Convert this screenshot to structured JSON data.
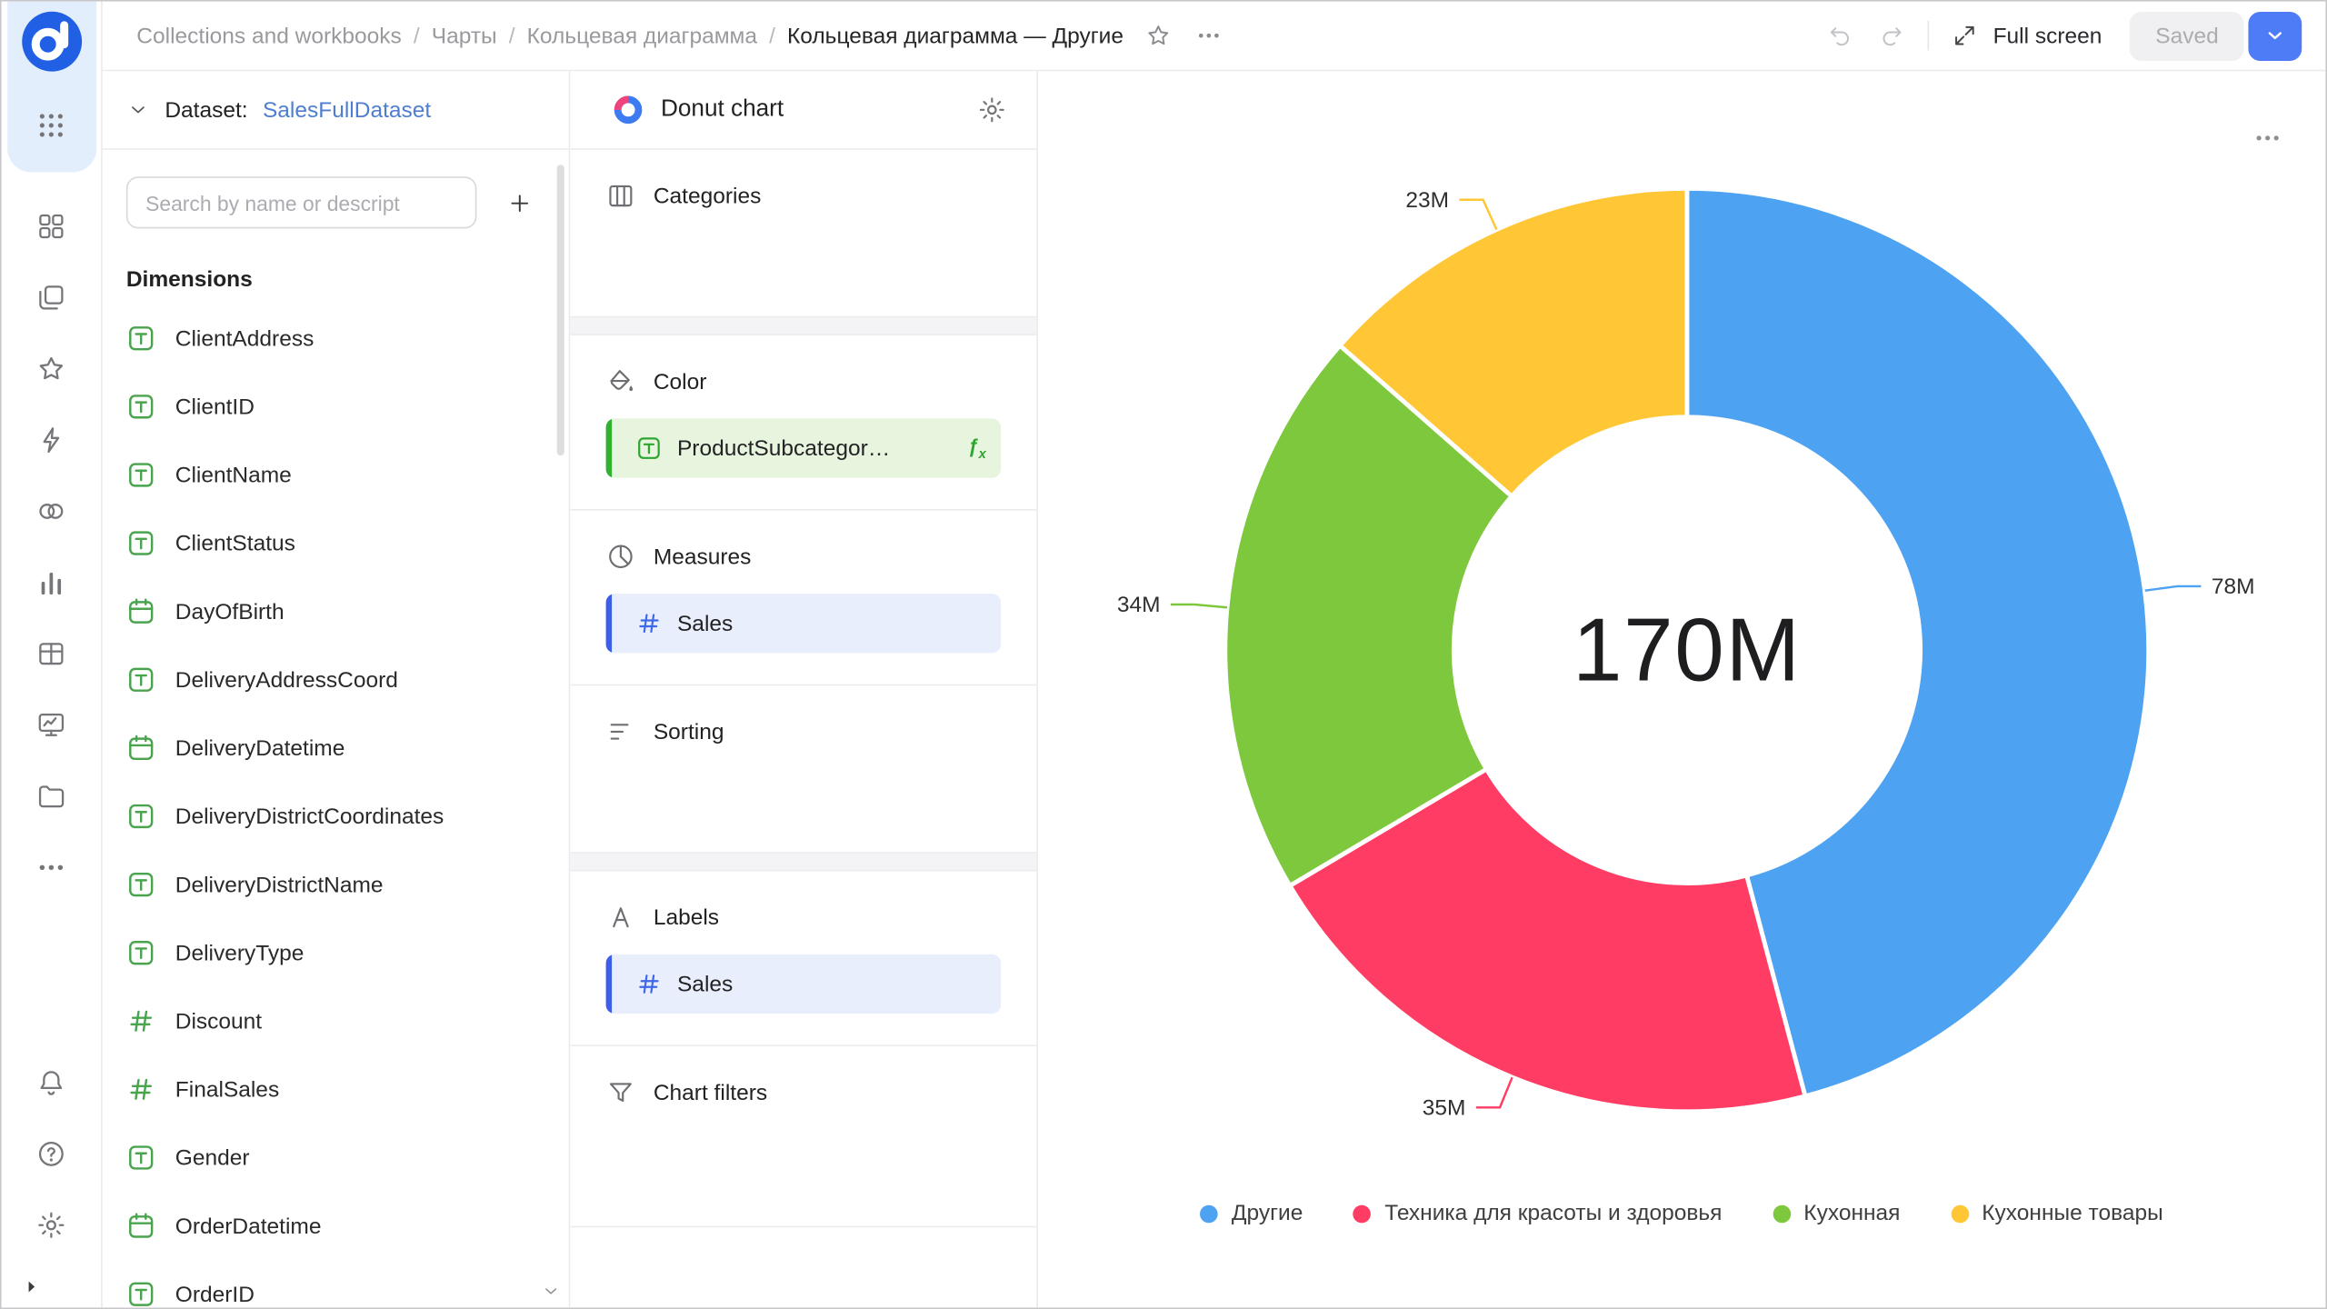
{
  "topbar": {
    "breadcrumbs": [
      "Collections and workbooks",
      "Чарты",
      "Кольцевая диаграмма"
    ],
    "current_page": "Кольцевая диаграмма — Другие",
    "full_screen": "Full screen",
    "saved": "Saved"
  },
  "rail": {
    "nav_items": [
      "dashboards",
      "collections",
      "favorites",
      "functions",
      "connections",
      "charts",
      "datasets",
      "monitoring",
      "storage",
      "more"
    ],
    "bottom_items": [
      "notifications",
      "help",
      "settings"
    ]
  },
  "dataset_panel": {
    "dataset_label": "Dataset:",
    "dataset_name": "SalesFullDataset",
    "search_placeholder": "Search by name or descript",
    "section_title": "Dimensions",
    "fields": [
      {
        "name": "ClientAddress",
        "type": "text"
      },
      {
        "name": "ClientID",
        "type": "text"
      },
      {
        "name": "ClientName",
        "type": "text"
      },
      {
        "name": "ClientStatus",
        "type": "text"
      },
      {
        "name": "DayOfBirth",
        "type": "date"
      },
      {
        "name": "DeliveryAddressCoord",
        "type": "text"
      },
      {
        "name": "DeliveryDatetime",
        "type": "date"
      },
      {
        "name": "DeliveryDistrictCoordinates",
        "type": "text"
      },
      {
        "name": "DeliveryDistrictName",
        "type": "text"
      },
      {
        "name": "DeliveryType",
        "type": "text"
      },
      {
        "name": "Discount",
        "type": "number"
      },
      {
        "name": "FinalSales",
        "type": "number"
      },
      {
        "name": "Gender",
        "type": "text"
      },
      {
        "name": "OrderDatetime",
        "type": "date"
      },
      {
        "name": "OrderID",
        "type": "text"
      }
    ]
  },
  "config_panel": {
    "chart_type": "Donut chart",
    "groups": [
      [
        {
          "label": "Categories",
          "icon": "categories",
          "chips": []
        }
      ],
      [
        {
          "label": "Color",
          "icon": "color",
          "chips": [
            {
              "text": "ProductSubcategor…",
              "field_type": "text",
              "color": "green",
              "fx": true
            }
          ]
        },
        {
          "label": "Measures",
          "icon": "measures",
          "chips": [
            {
              "text": "Sales",
              "field_type": "number",
              "color": "blue"
            }
          ]
        },
        {
          "label": "Sorting",
          "icon": "sorting",
          "chips": []
        }
      ],
      [
        {
          "label": "Labels",
          "icon": "labels",
          "chips": [
            {
              "text": "Sales",
              "field_type": "number",
              "color": "blue"
            }
          ]
        },
        {
          "label": "Chart filters",
          "icon": "filters",
          "chips": []
        }
      ]
    ]
  },
  "chart_data": {
    "type": "pie",
    "subtype": "donut",
    "title": "",
    "center_total": "170M",
    "units": "M",
    "legend_position": "bottom",
    "series": [
      {
        "name": "Другие",
        "value": 78,
        "label": "78M",
        "color": "#4DA2F1"
      },
      {
        "name": "Техника для красоты и здоровья",
        "value": 35,
        "label": "35M",
        "color": "#FF3D64"
      },
      {
        "name": "Кухонная",
        "value": 34,
        "label": "34M",
        "color": "#7DC83C"
      },
      {
        "name": "Кухонные товары",
        "value": 23,
        "label": "23M",
        "color": "#FFC636"
      }
    ]
  },
  "colors": {
    "accent": "#4E7CF6",
    "link": "#4E7ED2",
    "dimension_green": "#4AA44E",
    "measure_blue": "#3F68E8",
    "chip_green_bg": "#E7F5DF",
    "chip_blue_bg": "#E9EEFC"
  }
}
